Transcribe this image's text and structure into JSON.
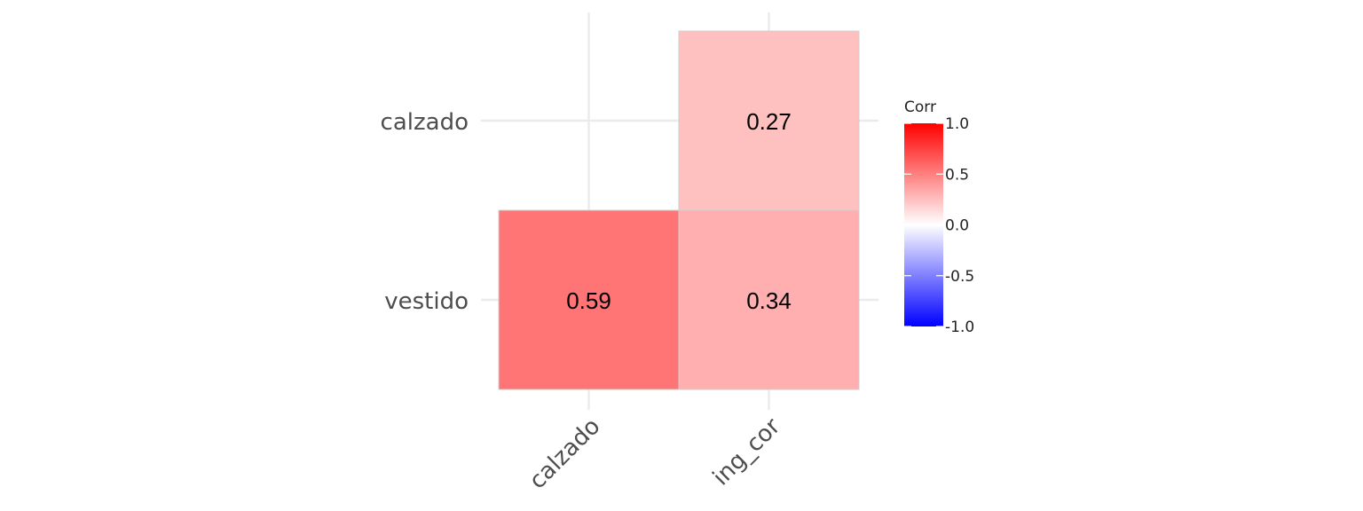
{
  "chart_data": {
    "type": "heatmap",
    "x_categories": [
      "calzado",
      "ing_cor"
    ],
    "y_categories": [
      "vestido",
      "calzado"
    ],
    "cells": [
      {
        "x": "calzado",
        "y": "vestido",
        "value": 0.59,
        "label": "0.59"
      },
      {
        "x": "ing_cor",
        "y": "vestido",
        "value": 0.34,
        "label": "0.34"
      },
      {
        "x": "ing_cor",
        "y": "calzado",
        "value": 0.27,
        "label": "0.27"
      }
    ],
    "legend": {
      "title": "Corr",
      "limits": [
        -1,
        1
      ],
      "ticks": [
        {
          "value": 1.0,
          "label": "1.0"
        },
        {
          "value": 0.5,
          "label": "0.5"
        },
        {
          "value": 0.0,
          "label": "0.0"
        },
        {
          "value": -0.5,
          "label": "-0.5"
        },
        {
          "value": -1.0,
          "label": "-1.0"
        }
      ],
      "colors": {
        "low": "#0000ff",
        "mid": "#ffffff",
        "high": "#ff0000"
      },
      "position": "right"
    },
    "grid": true
  }
}
